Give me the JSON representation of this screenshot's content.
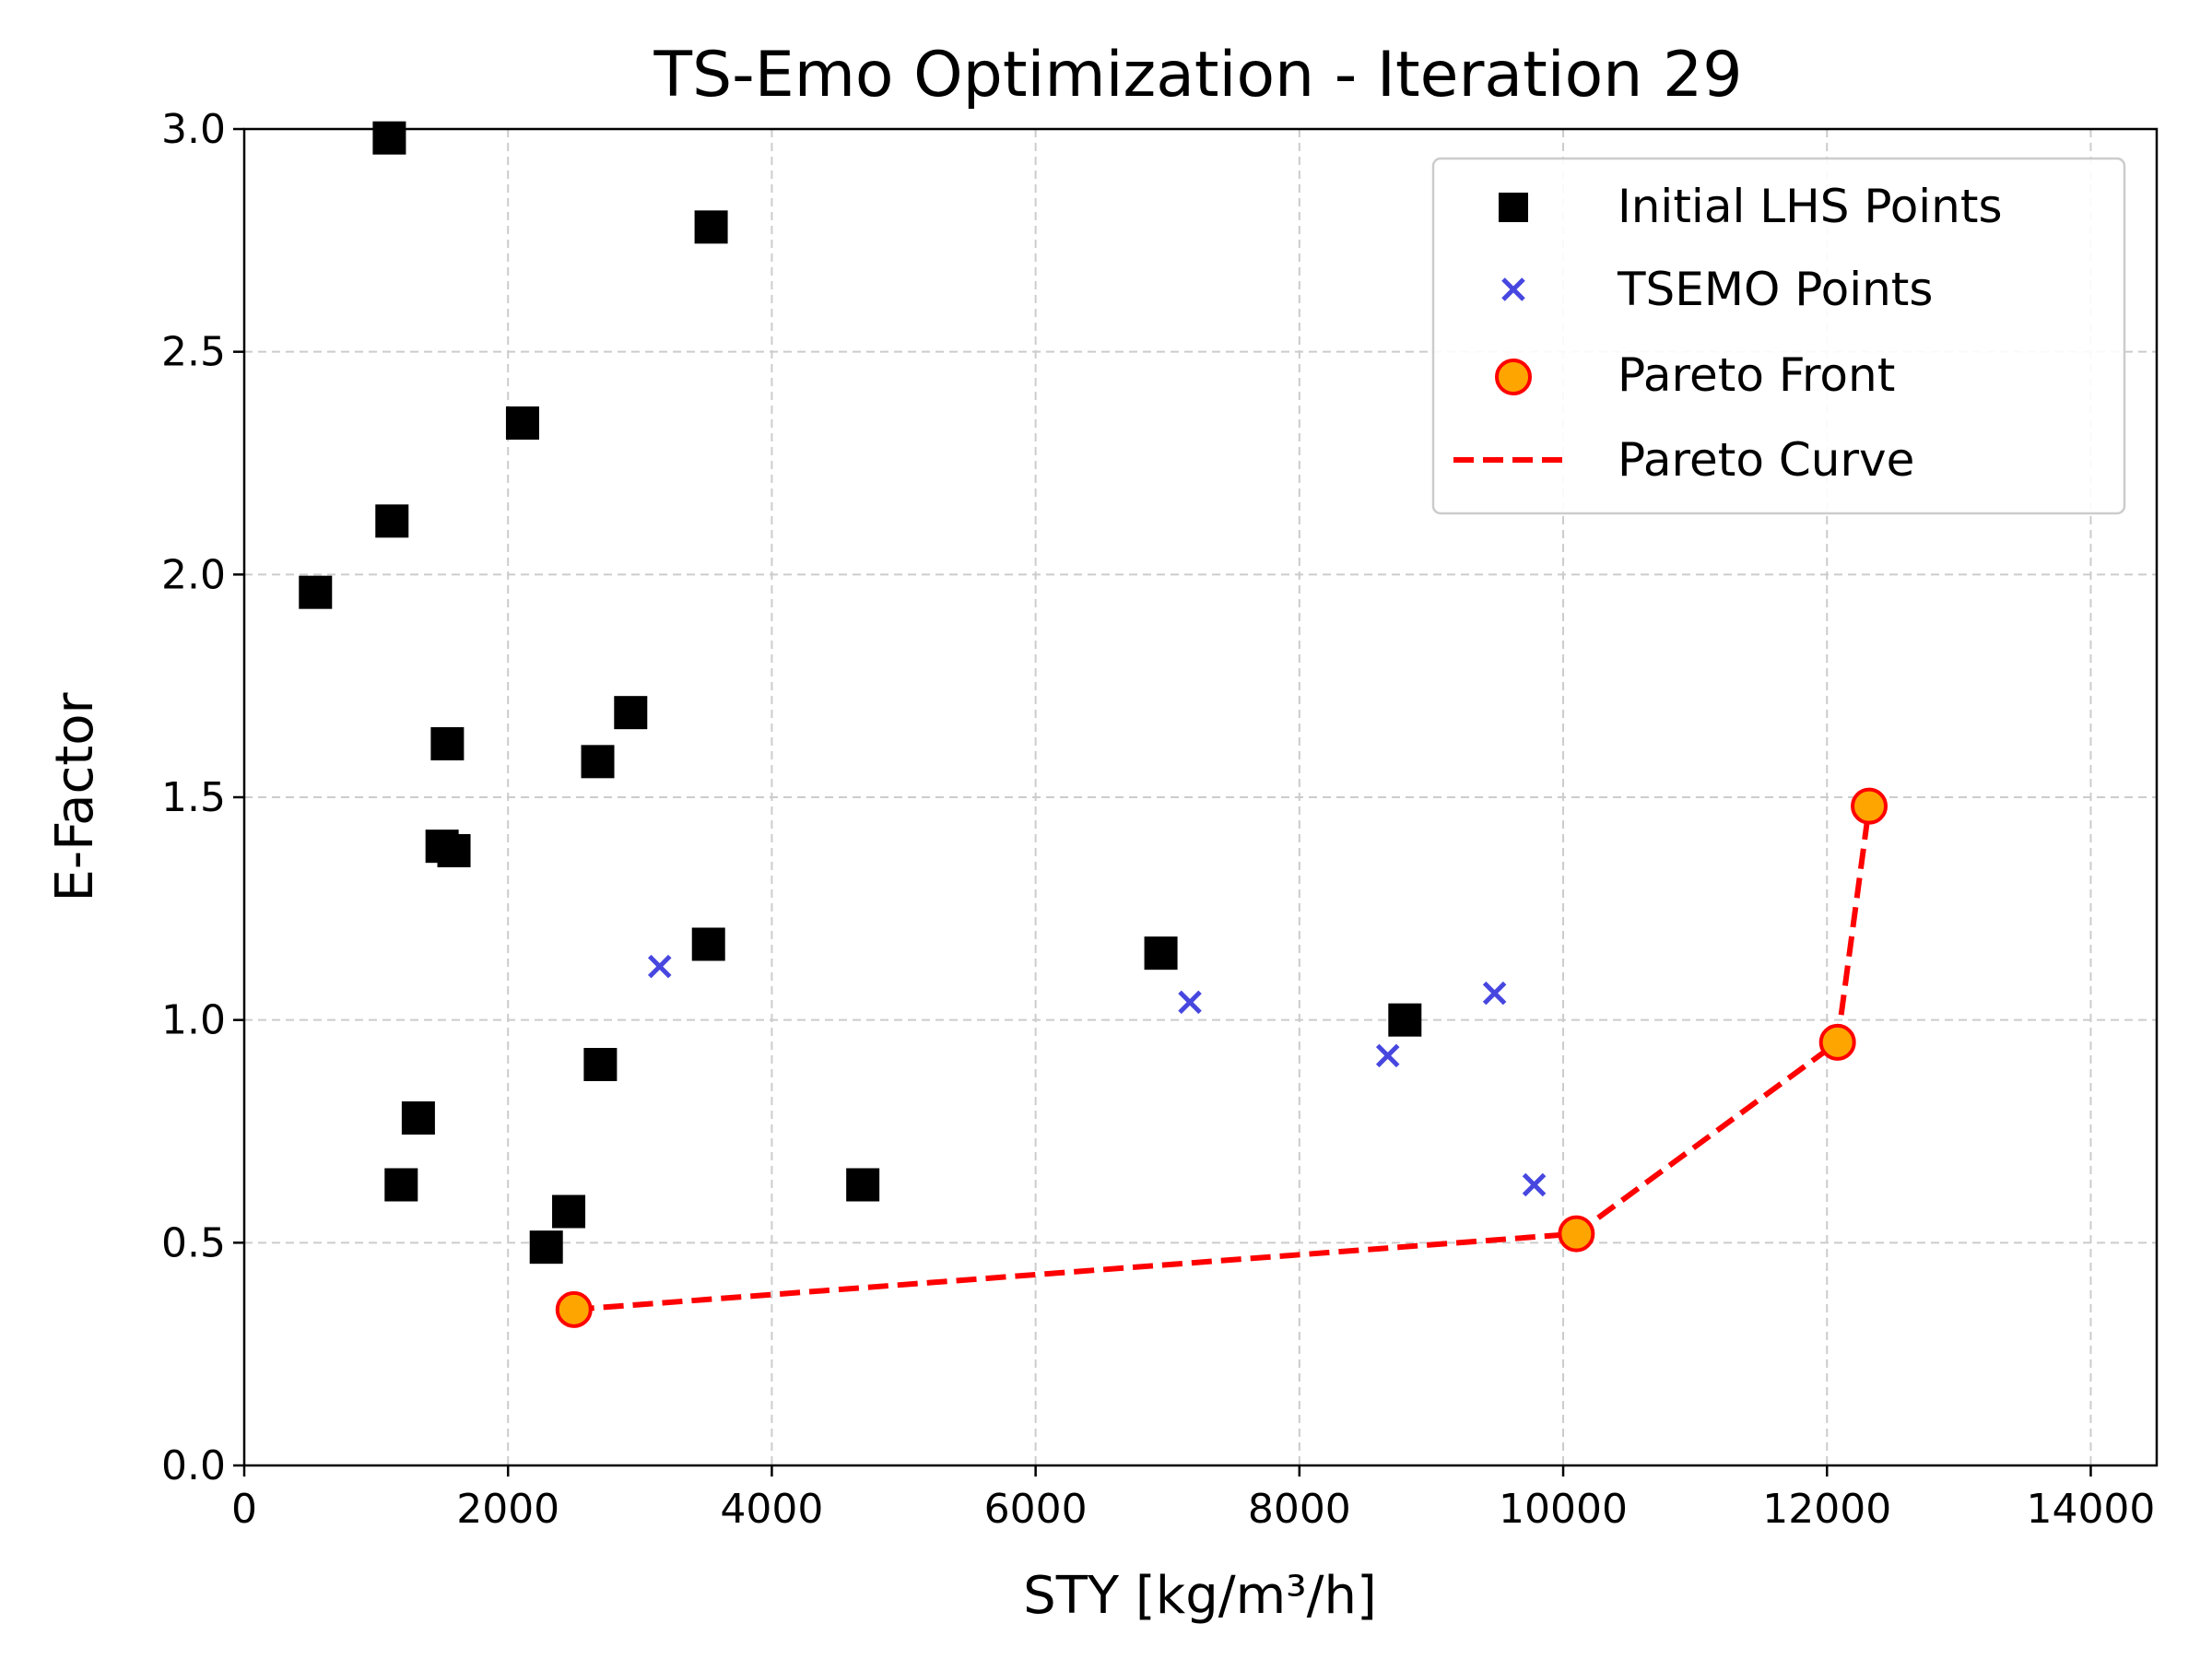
{
  "chart_data": {
    "type": "scatter",
    "title": "TS-Emo Optimization - Iteration 29",
    "xlabel": "STY [kg/m³/h]",
    "ylabel": "E-Factor",
    "xlim": [
      0,
      14500
    ],
    "ylim": [
      0,
      3.0
    ],
    "xticks": [
      0,
      2000,
      4000,
      6000,
      8000,
      10000,
      12000,
      14000
    ],
    "xtick_labels": [
      "0",
      "2000",
      "4000",
      "6000",
      "8000",
      "10000",
      "12000",
      "14000"
    ],
    "yticks": [
      0,
      0.5,
      1.0,
      1.5,
      2.0,
      2.5,
      3.0
    ],
    "ytick_labels": [
      "0.0",
      "0.5",
      "1.0",
      "1.5",
      "2.0",
      "2.5",
      "3.0"
    ],
    "grid": true,
    "legend_position": "top-right",
    "series": [
      {
        "name": "Initial LHS Points",
        "marker": "square",
        "color": "#000000",
        "points": [
          {
            "x": 1100,
            "y": 2.98
          },
          {
            "x": 3540,
            "y": 2.78
          },
          {
            "x": 2110,
            "y": 2.34
          },
          {
            "x": 1120,
            "y": 2.12
          },
          {
            "x": 540,
            "y": 1.96
          },
          {
            "x": 2930,
            "y": 1.69
          },
          {
            "x": 1540,
            "y": 1.62
          },
          {
            "x": 2680,
            "y": 1.58
          },
          {
            "x": 1500,
            "y": 1.39
          },
          {
            "x": 1590,
            "y": 1.38
          },
          {
            "x": 3520,
            "y": 1.17
          },
          {
            "x": 6950,
            "y": 1.15
          },
          {
            "x": 8800,
            "y": 1.0
          },
          {
            "x": 2700,
            "y": 0.9
          },
          {
            "x": 1320,
            "y": 0.78
          },
          {
            "x": 1190,
            "y": 0.63
          },
          {
            "x": 4690,
            "y": 0.63
          },
          {
            "x": 2460,
            "y": 0.57
          },
          {
            "x": 2290,
            "y": 0.49
          }
        ]
      },
      {
        "name": "TSEMO Points",
        "marker": "x",
        "color": "#4747e0",
        "points": [
          {
            "x": 3150,
            "y": 1.12
          },
          {
            "x": 7170,
            "y": 1.04
          },
          {
            "x": 9480,
            "y": 1.06
          },
          {
            "x": 8670,
            "y": 0.92
          },
          {
            "x": 9780,
            "y": 0.63
          }
        ]
      },
      {
        "name": "Pareto Front",
        "marker": "circle",
        "color": "#ffa500",
        "edge_color": "#ff0000",
        "points": [
          {
            "x": 2500,
            "y": 0.35
          },
          {
            "x": 10100,
            "y": 0.52
          },
          {
            "x": 12080,
            "y": 0.95
          },
          {
            "x": 12320,
            "y": 1.48
          }
        ]
      },
      {
        "name": "Pareto Curve",
        "marker": "dashed-line",
        "color": "#ff0000",
        "points": [
          {
            "x": 2500,
            "y": 0.35
          },
          {
            "x": 10100,
            "y": 0.52
          },
          {
            "x": 12080,
            "y": 0.95
          },
          {
            "x": 12320,
            "y": 1.48
          }
        ]
      }
    ]
  }
}
